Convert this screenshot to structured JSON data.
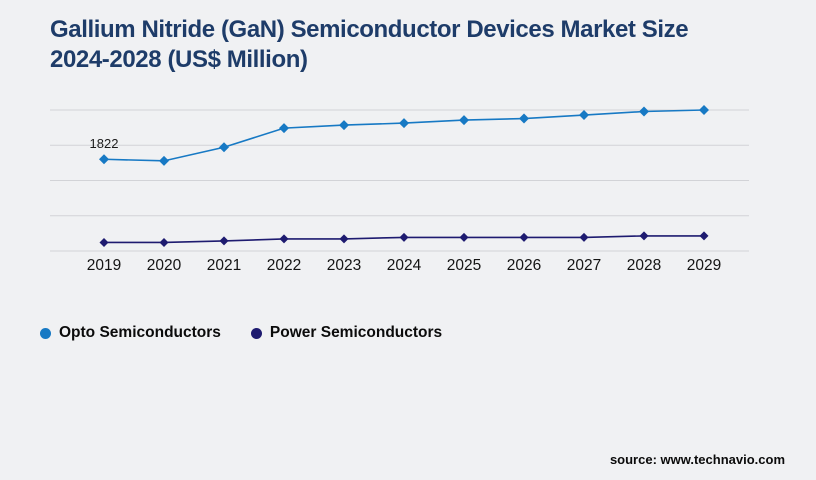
{
  "page": {
    "title_line1": "Gallium Nitride (GaN) Semiconductor Devices Market Size",
    "title_line2": "2024-2028 (US$ Million)",
    "source": "source: www.technavio.com"
  },
  "colors": {
    "background": "#f0f1f3",
    "title": "#1e3c69",
    "gridline": "#d2d3d7",
    "axis_label": "#141414",
    "point_label": "#1a1a1a"
  },
  "chart_data": {
    "type": "line",
    "title": "Gallium Nitride (GaN) Semiconductor Devices Market Size 2024-2028 (US$ Million)",
    "categories": [
      "2019",
      "2020",
      "2021",
      "2022",
      "2023",
      "2024",
      "2025",
      "2026",
      "2027",
      "2028",
      "2029"
    ],
    "series": [
      {
        "name": "Opto Semiconductors",
        "color": "#1779c4",
        "values": [
          1822,
          1790,
          2060,
          2440,
          2500,
          2540,
          2600,
          2630,
          2700,
          2770,
          2800
        ]
      },
      {
        "name": "Power Semiconductors",
        "color": "#1e1b70",
        "values": [
          170,
          170,
          200,
          240,
          240,
          270,
          270,
          270,
          270,
          300,
          300
        ]
      }
    ],
    "ylim": [
      0,
      2800
    ],
    "gridline_values": [
      0,
      700,
      1400,
      2100,
      2800
    ],
    "grid": true,
    "marker": "diamond",
    "legend_position": "bottom",
    "xlabel": "",
    "ylabel": "",
    "point_labels": [
      {
        "series": 0,
        "index": 0,
        "text": "1822"
      }
    ]
  }
}
